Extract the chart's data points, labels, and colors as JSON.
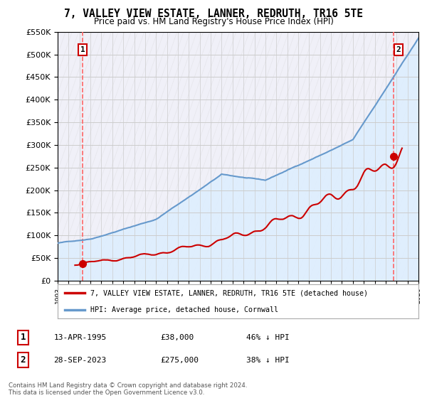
{
  "title": "7, VALLEY VIEW ESTATE, LANNER, REDRUTH, TR16 5TE",
  "subtitle": "Price paid vs. HM Land Registry's House Price Index (HPI)",
  "legend_line1": "7, VALLEY VIEW ESTATE, LANNER, REDRUTH, TR16 5TE (detached house)",
  "legend_line2": "HPI: Average price, detached house, Cornwall",
  "sale1_date": "13-APR-1995",
  "sale1_price": "£38,000",
  "sale1_hpi": "46% ↓ HPI",
  "sale1_year": 1995.28,
  "sale1_value": 38000,
  "sale2_date": "28-SEP-2023",
  "sale2_price": "£275,000",
  "sale2_hpi": "38% ↓ HPI",
  "sale2_year": 2023.75,
  "sale2_value": 275000,
  "footer": "Contains HM Land Registry data © Crown copyright and database right 2024.\nThis data is licensed under the Open Government Licence v3.0.",
  "red_line_color": "#cc0000",
  "blue_line_color": "#6699cc",
  "hpi_area_color": "#ddeeff",
  "grid_color": "#cccccc",
  "dashed_line_color": "#ff6666",
  "ylim": [
    0,
    550000
  ],
  "xlim_start": 1993,
  "xlim_end": 2026,
  "background_color": "#ffffff",
  "plot_bg_color": "#f0f0f8"
}
